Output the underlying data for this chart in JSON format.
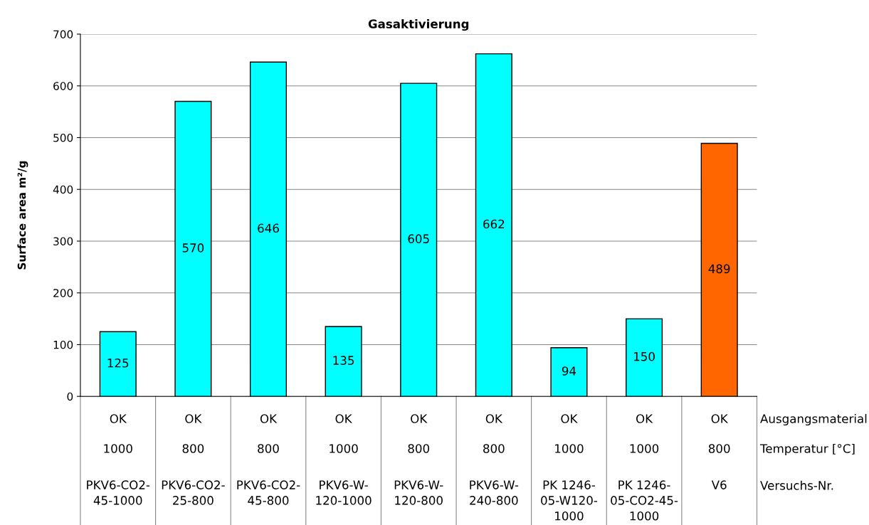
{
  "chart_data": {
    "type": "bar",
    "title": "Gasaktivierung",
    "ylabel": "Surface area m²/g",
    "categories": [
      "OK\n1000\nPKV6-CO2-\n45-1000",
      "OK\n800\nPKV6-CO2-\n25-800",
      "OK\n800\nPKV6-CO2-\n45-800",
      "OK\n1000\nPKV6-W-\n120-1000",
      "OK\n800\nPKV6-W-\n120-800",
      "OK\n800\nPKV6-W-\n240-800",
      "OK\n1000\nPK 1246-\n05-W120-\n1000",
      "OK\n1000\nPK 1246-\n05-CO2-45-\n1000",
      "OK\n800\nV6"
    ],
    "values": [
      125,
      570,
      646,
      135,
      605,
      662,
      94,
      150,
      489
    ],
    "colors": [
      "#00ffff",
      "#00ffff",
      "#00ffff",
      "#00ffff",
      "#00ffff",
      "#00ffff",
      "#00ffff",
      "#00ffff",
      "#ff6600"
    ],
    "ylim": [
      0,
      700
    ],
    "yticks": [
      0,
      100,
      200,
      300,
      400,
      500,
      600,
      700
    ],
    "grid": "y",
    "data_labels": true,
    "annotations": [
      "Ausgangsmaterial",
      "Temperatur [°C]",
      "Versuchs-Nr."
    ]
  }
}
